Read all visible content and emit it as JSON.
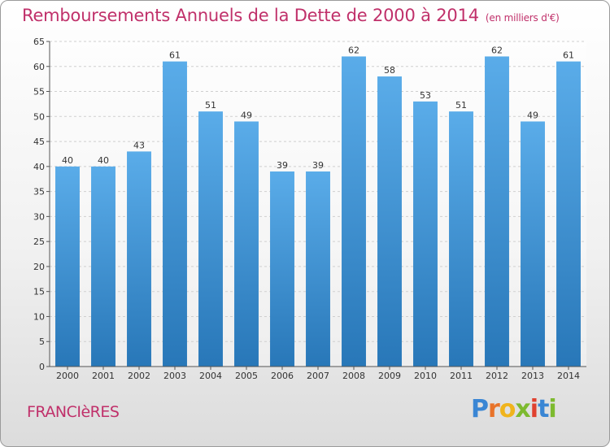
{
  "header": {
    "title": "Remboursements Annuels de la Dette de 2000 à 2014",
    "unit": "(en milliers d'€)"
  },
  "footer": {
    "town": "FRANCIèRES",
    "logo_letters": [
      "P",
      "r",
      "o",
      "x",
      "i",
      "t",
      "i"
    ]
  },
  "colors": {
    "bar_light": "#5aace9",
    "bar_dark": "#2877b8",
    "title": "#c0306a"
  },
  "chart_data": {
    "type": "bar",
    "title": "Remboursements Annuels de la Dette de 2000 à 2014",
    "xlabel": "",
    "ylabel": "",
    "categories": [
      "2000",
      "2001",
      "2002",
      "2003",
      "2004",
      "2005",
      "2006",
      "2007",
      "2008",
      "2009",
      "2010",
      "2011",
      "2012",
      "2013",
      "2014"
    ],
    "values": [
      40,
      40,
      43,
      61,
      51,
      49,
      39,
      39,
      62,
      58,
      53,
      51,
      62,
      49,
      61
    ],
    "ylim": [
      0,
      65
    ],
    "yticks": [
      0,
      5,
      10,
      15,
      20,
      25,
      30,
      35,
      40,
      45,
      50,
      55,
      60,
      65
    ],
    "grid": true,
    "legend": "none"
  }
}
